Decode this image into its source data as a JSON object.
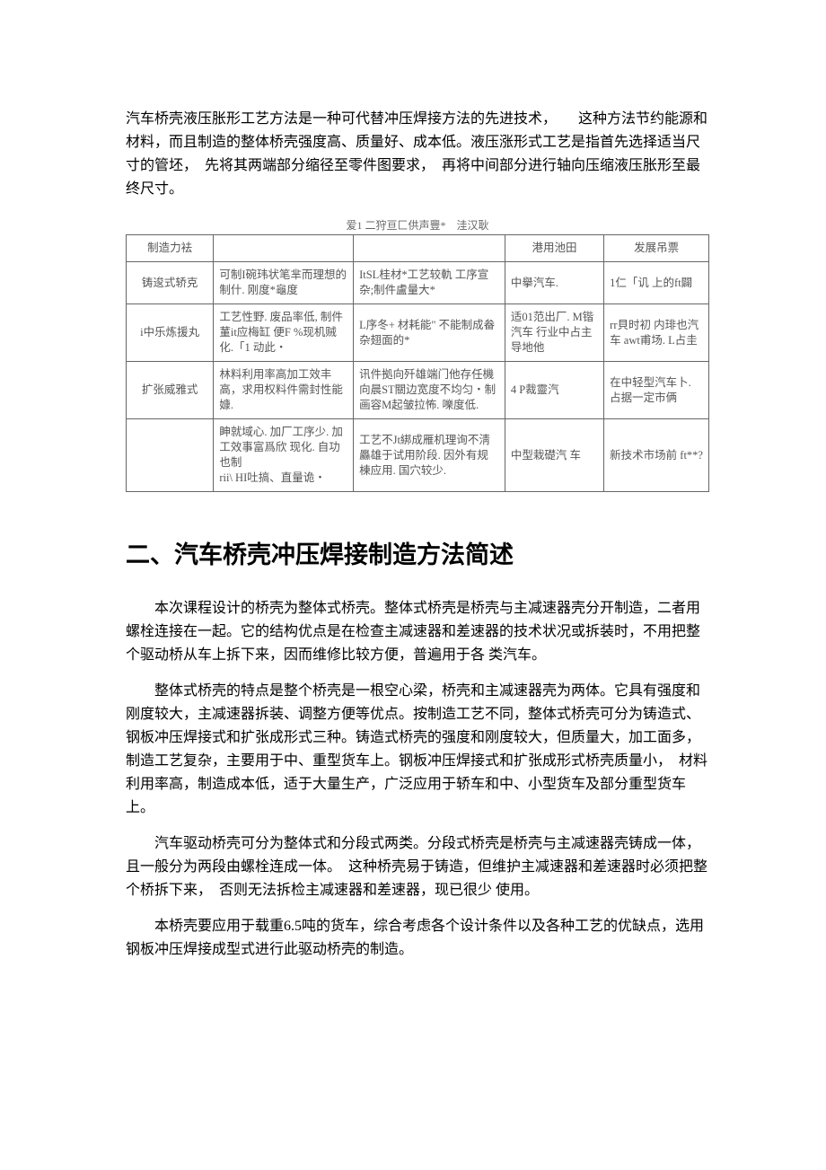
{
  "intro": {
    "p1": "汽车桥壳液压胀形工艺方法是一种可代替冲压焊接方法的先进技术，　　这种方法节约能源和材料，而且制造的整体桥壳强度高、质量好、成本低。液压涨形式工艺是指首先选择适当尺寸的管坯，　先将其两端部分缩径至零件图要求，　再将中间部分进行轴向压缩液压胀形至最终尺寸。"
  },
  "table": {
    "caption": "爱1 二狩亘匚供声豐*　洼汉耿",
    "headers": [
      "制造力袪",
      "",
      "",
      "港用池田",
      "发展吊票"
    ],
    "rows": [
      {
        "c0": "铸逡式轿克",
        "c1": "可制I碗玮状笔芈而理想的制什. 刚度*龜度",
        "c2": "ItSL桂材*工艺较軌 工序宣杂;制件盧量大*",
        "c3": "中擧汽车.",
        "c4": "1仁「讥 上的ft闢"
      },
      {
        "c0": "i中乐炼援丸",
        "c1": "工艺性野. 废品率低, 制件蓳it应梅缸 便F %现机贼化.「1 动此・",
        "c2": "L序冬+ 材耗能\" 不能制成畚杂翅面的*",
        "c3": "适01范出厂. M锴汽车 行业中占主导地他",
        "c4": "rr貝时初 内琲也汽车 awt甫场. L占圭"
      },
      {
        "c0": "扩张威雅式",
        "c1": "林料利用率高加工效丰高，求用权料件需封性能嫝.",
        "c2": "讯件拠向歼雄端门他存任機向晨ST關边宽度不均匀・制画容M起皱拉怖. 嚛度低.",
        "c3": "4 P裁靈汽",
        "c4": "在中轻型汽车卜. 占据一定市俩"
      },
      {
        "c0": "",
        "c1": "眒就域心. 加厂工序少. 加工效事富爲欣 现化. 自功也制\n rii\\ HI吐搞、直量诡・",
        "c2": "工艺不Jt綁成雁机理询不淸厵雄于试用阶段. 因外有规棟应用. 国穴较少.",
        "c3": "中型栽礎汽 车",
        "c4": "新技术市场前 ft**?"
      }
    ]
  },
  "section": {
    "title": "二、汽车桥壳冲压焊接制造方法简述",
    "p1": "本次课程设计的桥壳为整体式桥壳。整体式桥壳是桥壳与主减速器壳分开制造，二者用螺栓连接在一起。它的结构优点是在检查主减速器和差速器的技术状况或拆装时，不用把整个驱动桥从车上拆下来，因而维修比较方便，普遍用于各 类汽车。",
    "p2": "整体式桥壳的特点是整个桥壳是一根空心梁，桥壳和主减速器壳为两体。它具有强度和刚度较大，主减速器拆装、调整方便等优点。按制造工艺不同，整体式桥壳可分为铸造式、钢板冲压焊接式和扩张成形式三种。铸造式桥壳的强度和刚度较大，但质量大，加工面多，制造工艺复杂，主要用于中、重型货车上。钢板冲压焊接式和扩张成形式桥壳质量小，　材料利用率高，制造成本低，适于大量生产，广泛应用于轿车和中、小型货车及部分重型货车上。",
    "p3": "汽车驱动桥壳可分为整体式和分段式两类。分段式桥壳是桥壳与主减速器壳铸成一体，且一般分为两段由螺栓连成一体。　这种桥壳易于铸造，但维护主减速器和差速器时必须把整个桥拆下来，　否则无法拆检主减速器和差速器，现已很少 使用。",
    "p4": "本桥壳要应用于载重6.5吨的货车，综合考虑各个设计条件以及各种工艺的优缺点，选用钢板冲压焊接成型式进行此驱动桥壳的制造。"
  }
}
